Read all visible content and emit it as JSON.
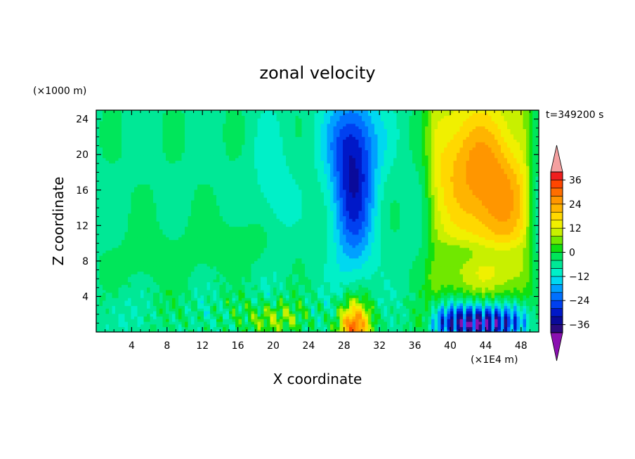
{
  "chart_data": {
    "type": "heatmap",
    "title": "zonal velocity",
    "xlabel": "X coordinate",
    "ylabel": "Z coordinate",
    "x_unit_label": "(×1E4 m)",
    "y_unit_label": "(×1000 m)",
    "time_label": "t=349200 s",
    "xlim": [
      0,
      50
    ],
    "ylim": [
      0,
      25
    ],
    "x_ticks": [
      4,
      8,
      12,
      16,
      20,
      24,
      28,
      32,
      36,
      40,
      44,
      48
    ],
    "x_tick_labels": [
      "4",
      "8",
      "12",
      "16",
      "20",
      "24",
      "28",
      "32",
      "36",
      "40",
      "44",
      "48"
    ],
    "y_ticks": [
      4,
      8,
      12,
      16,
      20,
      24
    ],
    "y_tick_labels": [
      "4",
      "8",
      "12",
      "16",
      "20",
      "24"
    ],
    "colorbar": {
      "levels": [
        -40,
        -36,
        -32,
        -28,
        -24,
        -20,
        -16,
        -12,
        -8,
        -4,
        0,
        4,
        8,
        12,
        16,
        20,
        24,
        28,
        32,
        36,
        40
      ],
      "colors": [
        "#2a0a80",
        "#0a0a9a",
        "#0018c8",
        "#0040f0",
        "#0070ff",
        "#00a0ff",
        "#00d8f0",
        "#00f0c8",
        "#00e896",
        "#00e65a",
        "#10e010",
        "#70e800",
        "#c8f000",
        "#f0f000",
        "#ffd800",
        "#ffb400",
        "#ff9600",
        "#ff6e00",
        "#ff4600",
        "#f01e1e"
      ],
      "under_color": "#8a10b0",
      "over_color": "#f4a0a0",
      "tick_labels": [
        "36",
        "24",
        "12",
        "0",
        "−12",
        "−24",
        "−36"
      ],
      "tick_values": [
        36,
        24,
        12,
        0,
        -12,
        -24,
        -36
      ]
    },
    "features": [
      {
        "name": "negative-jet-upper",
        "x": 29,
        "z": 16,
        "value": -28
      },
      {
        "name": "negative-jet-lower",
        "x": 28.5,
        "z": 12,
        "value": -22
      },
      {
        "name": "positive-jet-east",
        "x": 45,
        "z": 16,
        "value": 30
      },
      {
        "name": "positive-jet-broad",
        "x": 42,
        "z": 19,
        "value": 25
      },
      {
        "name": "surface-negative-east",
        "x": 43,
        "z": 1,
        "value": -34
      },
      {
        "name": "surface-positive-core",
        "x": 29,
        "z": 1,
        "value": 28
      },
      {
        "name": "surface-positive-west",
        "x": 20,
        "z": 2,
        "value": 10
      },
      {
        "name": "cyan-column",
        "x": 20,
        "z": 14,
        "value": -9
      },
      {
        "name": "near-zero-background",
        "x": 10,
        "z": 18,
        "value": -5
      }
    ]
  }
}
